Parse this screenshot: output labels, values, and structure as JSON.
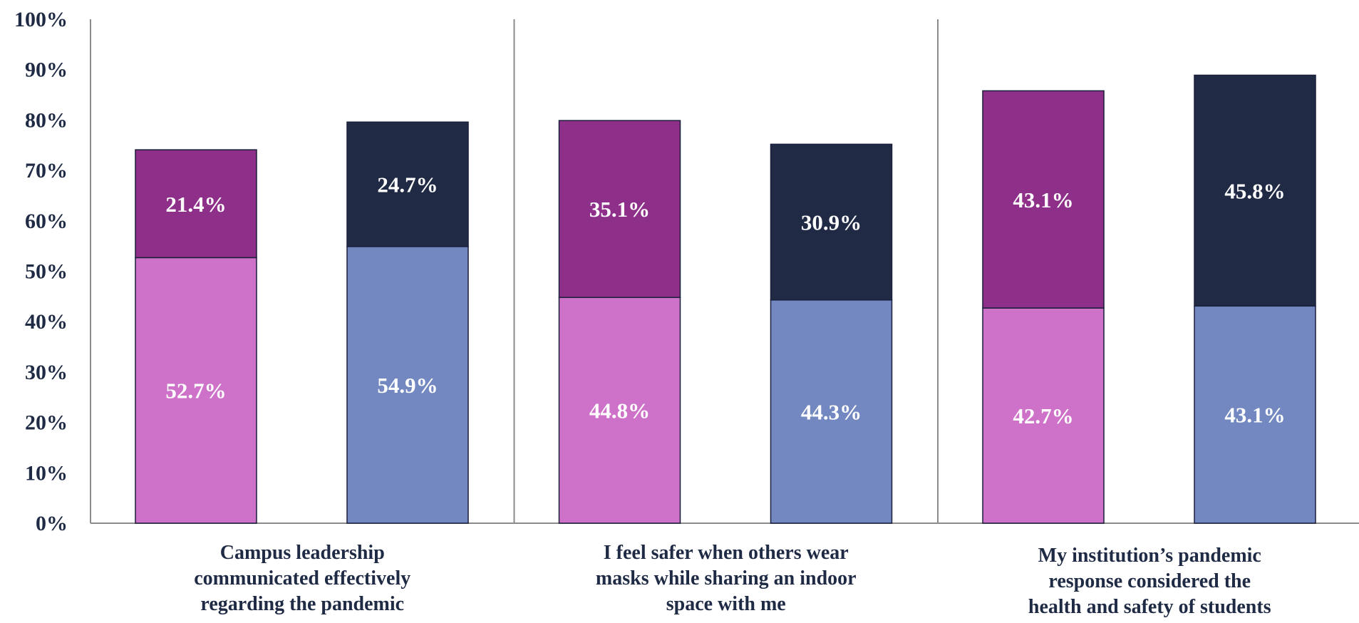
{
  "chart_data": {
    "type": "bar",
    "stacked": true,
    "categories": [
      "Campus leadership communicated effectively regarding the pandemic",
      "I feel safer when others wear masks while sharing an indoor space with me",
      "My institution’s pandemic response considered the health and safety of students"
    ],
    "category_lines": [
      [
        "Campus leadership",
        "communicated effectively",
        "regarding the pandemic"
      ],
      [
        "I feel safer when others wear",
        "masks while sharing an indoor",
        "space with me"
      ],
      [
        "My institution’s pandemic",
        "response considered the",
        "health and safety of  students"
      ]
    ],
    "groups": [
      {
        "bars": [
          {
            "bottom": 52.7,
            "top": 21.4,
            "bottom_label": "52.7%",
            "top_label": "21.4%",
            "bottom_color": "#cd72c8",
            "top_color": "#8e2f89"
          },
          {
            "bottom": 54.9,
            "top": 24.7,
            "bottom_label": "54.9%",
            "top_label": "24.7%",
            "bottom_color": "#7388c1",
            "top_color": "#202a44"
          }
        ]
      },
      {
        "bars": [
          {
            "bottom": 44.8,
            "top": 35.1,
            "bottom_label": "44.8%",
            "top_label": "35.1%",
            "bottom_color": "#cd72c8",
            "top_color": "#8e2f89"
          },
          {
            "bottom": 44.3,
            "top": 30.9,
            "bottom_label": "44.3%",
            "top_label": "30.9%",
            "bottom_color": "#7388c1",
            "top_color": "#202a44"
          }
        ]
      },
      {
        "bars": [
          {
            "bottom": 42.7,
            "top": 43.1,
            "bottom_label": "42.7%",
            "top_label": "43.1%",
            "bottom_color": "#cd72c8",
            "top_color": "#8e2f89"
          },
          {
            "bottom": 43.1,
            "top": 45.8,
            "bottom_label": "43.1%",
            "top_label": "45.8%",
            "bottom_color": "#7388c1",
            "top_color": "#202a44"
          }
        ]
      }
    ],
    "y_ticks": [
      "0%",
      "10%",
      "20%",
      "30%",
      "40%",
      "50%",
      "60%",
      "70%",
      "80%",
      "90%",
      "100%"
    ],
    "ylim": [
      0,
      100
    ],
    "grid": false,
    "legend": "none"
  },
  "colors": {
    "text": "#1f2a44",
    "axis": "#8c8c8c",
    "bar_outline": "#1a1f3a"
  }
}
